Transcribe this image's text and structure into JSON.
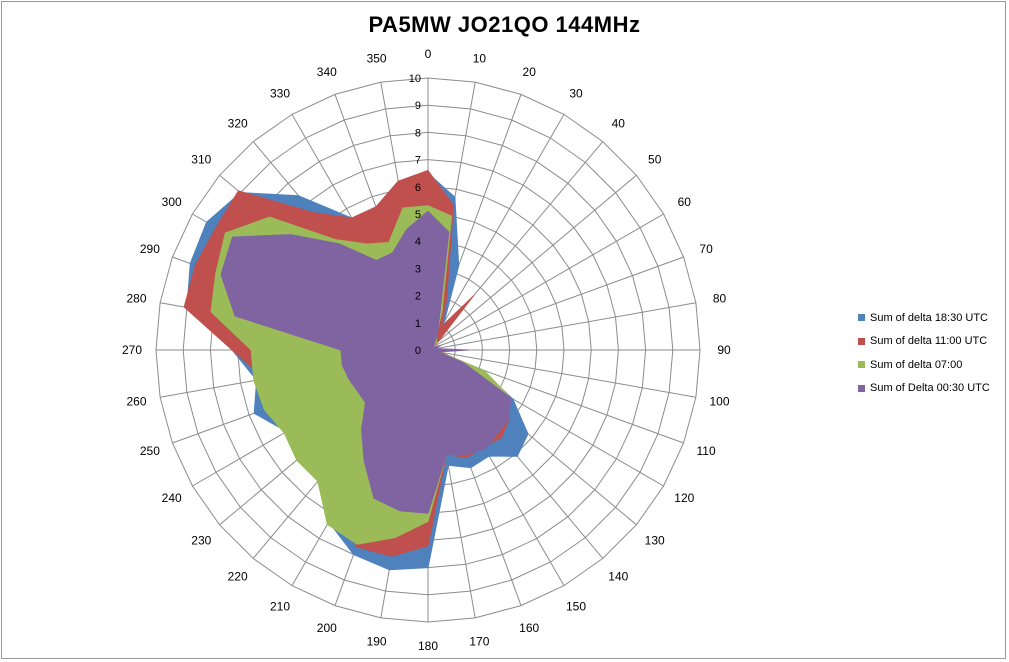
{
  "chart_data": {
    "type": "radar-area",
    "title": "PA5MW  JO21QO  144MHz",
    "angles": [
      0,
      10,
      20,
      30,
      40,
      50,
      60,
      70,
      80,
      90,
      100,
      110,
      120,
      130,
      140,
      150,
      160,
      170,
      180,
      190,
      200,
      210,
      220,
      230,
      240,
      250,
      260,
      270,
      280,
      290,
      300,
      310,
      320,
      330,
      340,
      350
    ],
    "radial_ticks": [
      "0",
      "1",
      "2",
      "3",
      "4",
      "5",
      "6",
      "7",
      "8",
      "9",
      "10"
    ],
    "rlim": [
      0,
      10
    ],
    "legend_position": "right",
    "series": [
      {
        "name": "Sum of delta 18:30 UTC",
        "color": "#4F81BD",
        "values": [
          6.5,
          5.7,
          3.3,
          1.2,
          0.5,
          0.4,
          0.3,
          0.3,
          0.3,
          0.2,
          0.4,
          2.1,
          3.6,
          4.8,
          5.1,
          4.5,
          4.6,
          4.3,
          8.0,
          8.2,
          8.0,
          7.3,
          6.3,
          6.0,
          6.0,
          6.8,
          6.4,
          7.2,
          9.0,
          9.3,
          9.4,
          9.0,
          7.4,
          5.6,
          5.6,
          6.0
        ]
      },
      {
        "name": "Sum of delta 11:00 UTC",
        "color": "#C0504D",
        "values": [
          6.6,
          5.4,
          2.0,
          1.0,
          2.6,
          0.5,
          0.3,
          0.3,
          0.3,
          0.2,
          0.5,
          1.9,
          3.3,
          3.9,
          4.2,
          4.1,
          4.2,
          3.9,
          7.2,
          7.7,
          7.7,
          6.6,
          5.2,
          4.4,
          4.4,
          5.0,
          6.1,
          7.2,
          9.1,
          9.1,
          9.0,
          9.1,
          6.6,
          5.6,
          5.6,
          6.3
        ]
      },
      {
        "name": "Sum of delta 07:00",
        "color": "#9BBB59",
        "values": [
          5.3,
          5.0,
          1.5,
          0.6,
          0.5,
          0.4,
          0.3,
          0.3,
          0.3,
          0.2,
          0.4,
          2.2,
          3.5,
          3.7,
          4.0,
          4.1,
          4.1,
          3.9,
          6.3,
          7.0,
          7.6,
          7.4,
          6.3,
          6.3,
          6.1,
          6.4,
          6.5,
          6.5,
          8.1,
          8.3,
          8.6,
          7.6,
          5.3,
          4.5,
          4.2,
          5.3
        ]
      },
      {
        "name": "Sum of Delta 00:30 UTC",
        "color": "#8064A2",
        "values": [
          5.1,
          4.4,
          1.2,
          0.7,
          0.4,
          0.3,
          0.2,
          0.5,
          0.3,
          1.5,
          0.4,
          1.4,
          3.5,
          3.9,
          4.0,
          4.2,
          4.1,
          3.9,
          6.0,
          6.0,
          5.8,
          4.7,
          3.8,
          3.0,
          3.0,
          3.1,
          3.2,
          3.2,
          7.2,
          8.1,
          8.3,
          6.6,
          5.1,
          3.8,
          3.8,
          4.5
        ]
      }
    ]
  },
  "colors": {
    "grid": "#8c8c8c",
    "background": "#ffffff",
    "border": "#9a9a9a"
  }
}
